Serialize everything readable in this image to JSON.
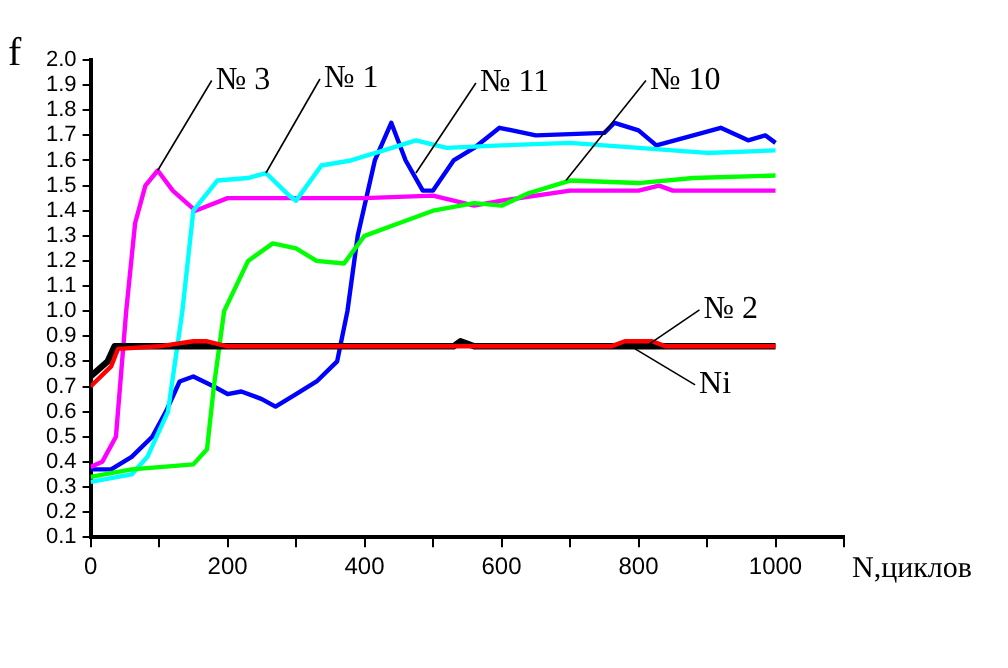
{
  "chart_data": {
    "type": "line",
    "xlabel": "N,циклов",
    "ylabel": "f",
    "xlim": [
      0,
      1100
    ],
    "ylim": [
      0.1,
      2.0
    ],
    "xticks": [
      0,
      {
        "value": 100,
        "label": null
      },
      200,
      {
        "value": 300,
        "label": null
      },
      400,
      {
        "value": 500,
        "label": null
      },
      600,
      {
        "value": 700,
        "label": null
      },
      800,
      {
        "value": 900,
        "label": null
      },
      1000,
      {
        "value": 1100,
        "label": null
      }
    ],
    "yticks": [
      0.1,
      0.2,
      0.3,
      0.4,
      0.5,
      0.6,
      0.7,
      0.8,
      0.9,
      {
        "value": 1,
        "label": "1.0"
      },
      1.1,
      1.2,
      1.3,
      1.4,
      1.5,
      1.6,
      1.7,
      1.8,
      1.9,
      {
        "value": 2,
        "label": "2.0"
      }
    ],
    "grid": false,
    "legend": false,
    "marker": "none",
    "line_style": "solid",
    "series": [
      {
        "color": "#ff0000",
        "x": [
          0,
          30,
          40,
          100,
          150,
          170,
          200,
          500,
          760,
          780,
          820,
          840,
          1000
        ],
        "values": [
          0.7,
          0.78,
          0.85,
          0.86,
          0.88,
          0.88,
          0.86,
          0.86,
          0.86,
          0.88,
          0.88,
          0.86,
          0.86
        ]
      },
      {
        "color": "#000000",
        "x": [
          0,
          25,
          35,
          100,
          300,
          530,
          540,
          560,
          800,
          1000
        ],
        "values": [
          0.74,
          0.8,
          0.86,
          0.86,
          0.86,
          0.86,
          0.88,
          0.86,
          0.86,
          0.86
        ]
      },
      {
        "color": "#00ff00",
        "x": [
          0,
          60,
          150,
          170,
          180,
          195,
          230,
          266,
          300,
          330,
          370,
          400,
          450,
          500,
          560,
          600,
          640,
          700,
          800,
          880,
          1000
        ],
        "values": [
          0.34,
          0.37,
          0.39,
          0.45,
          0.7,
          1.0,
          1.2,
          1.27,
          1.25,
          1.2,
          1.19,
          1.3,
          1.35,
          1.4,
          1.43,
          1.42,
          1.47,
          1.52,
          1.51,
          1.53,
          1.54
        ]
      },
      {
        "color": "#00ffff",
        "x": [
          0,
          60,
          83,
          113,
          134,
          150,
          185,
          230,
          256,
          290,
          300,
          337,
          380,
          440,
          475,
          520,
          600,
          700,
          800,
          900,
          1000
        ],
        "values": [
          0.32,
          0.35,
          0.42,
          0.6,
          1.0,
          1.4,
          1.52,
          1.53,
          1.55,
          1.46,
          1.44,
          1.58,
          1.6,
          1.65,
          1.68,
          1.65,
          1.66,
          1.67,
          1.65,
          1.63,
          1.64
        ]
      },
      {
        "color": "#ff00ff",
        "x": [
          0,
          17,
          37,
          52,
          65,
          80,
          98,
          120,
          153,
          200,
          400,
          500,
          560,
          600,
          700,
          800,
          830,
          850,
          1000
        ],
        "values": [
          0.38,
          0.4,
          0.5,
          1.0,
          1.35,
          1.5,
          1.56,
          1.48,
          1.4,
          1.45,
          1.45,
          1.46,
          1.42,
          1.44,
          1.48,
          1.48,
          1.5,
          1.48,
          1.48
        ]
      },
      {
        "color": "#0000ff",
        "x": [
          0,
          30,
          60,
          90,
          110,
          130,
          150,
          180,
          200,
          220,
          250,
          270,
          300,
          330,
          360,
          375,
          390,
          415,
          439,
          460,
          485,
          500,
          530,
          560,
          597,
          650,
          750,
          765,
          800,
          826,
          880,
          920,
          960,
          985,
          1000
        ],
        "values": [
          0.37,
          0.37,
          0.42,
          0.5,
          0.6,
          0.72,
          0.74,
          0.7,
          0.67,
          0.68,
          0.65,
          0.62,
          0.67,
          0.72,
          0.8,
          1.0,
          1.3,
          1.6,
          1.75,
          1.6,
          1.48,
          1.48,
          1.6,
          1.65,
          1.73,
          1.7,
          1.71,
          1.75,
          1.72,
          1.66,
          1.7,
          1.73,
          1.68,
          1.7,
          1.67
        ]
      }
    ],
    "annotations": [
      {
        "text": "№ 3",
        "x": 98,
        "y": 1.56
      },
      {
        "text": "№ 1",
        "x": 256,
        "y": 1.55
      },
      {
        "text": "№ 11",
        "x": 475,
        "y": 1.55
      },
      {
        "text": "№ 10",
        "x": 694,
        "y": 1.52
      },
      {
        "text": "№ 2",
        "x": 816,
        "y": 0.87
      },
      {
        "text": "Ni",
        "x": 795,
        "y": 0.85
      }
    ]
  }
}
